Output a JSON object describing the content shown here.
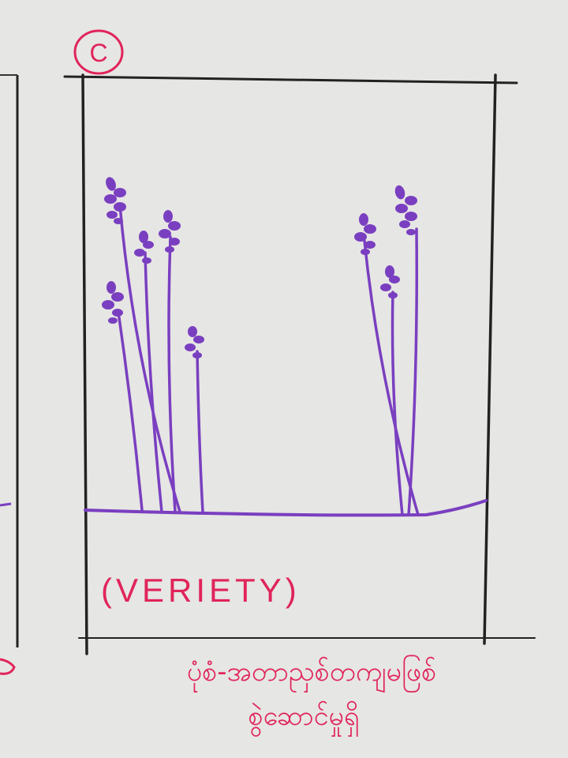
{
  "panel": {
    "label": "C",
    "caption": "(VERIETY)",
    "footer_line_1": "ပုံစံ-အတာညှစ်တကျမဖြစ်",
    "footer_line_2": "စွဲဆောင်မှုရှိ"
  },
  "colors": {
    "paper": "#e6e6e4",
    "frame": "#222222",
    "plant": "#7a3fc0",
    "ink_red": "#e0245a"
  },
  "plants": {
    "left_group_count": 5,
    "right_group_count": 3
  }
}
